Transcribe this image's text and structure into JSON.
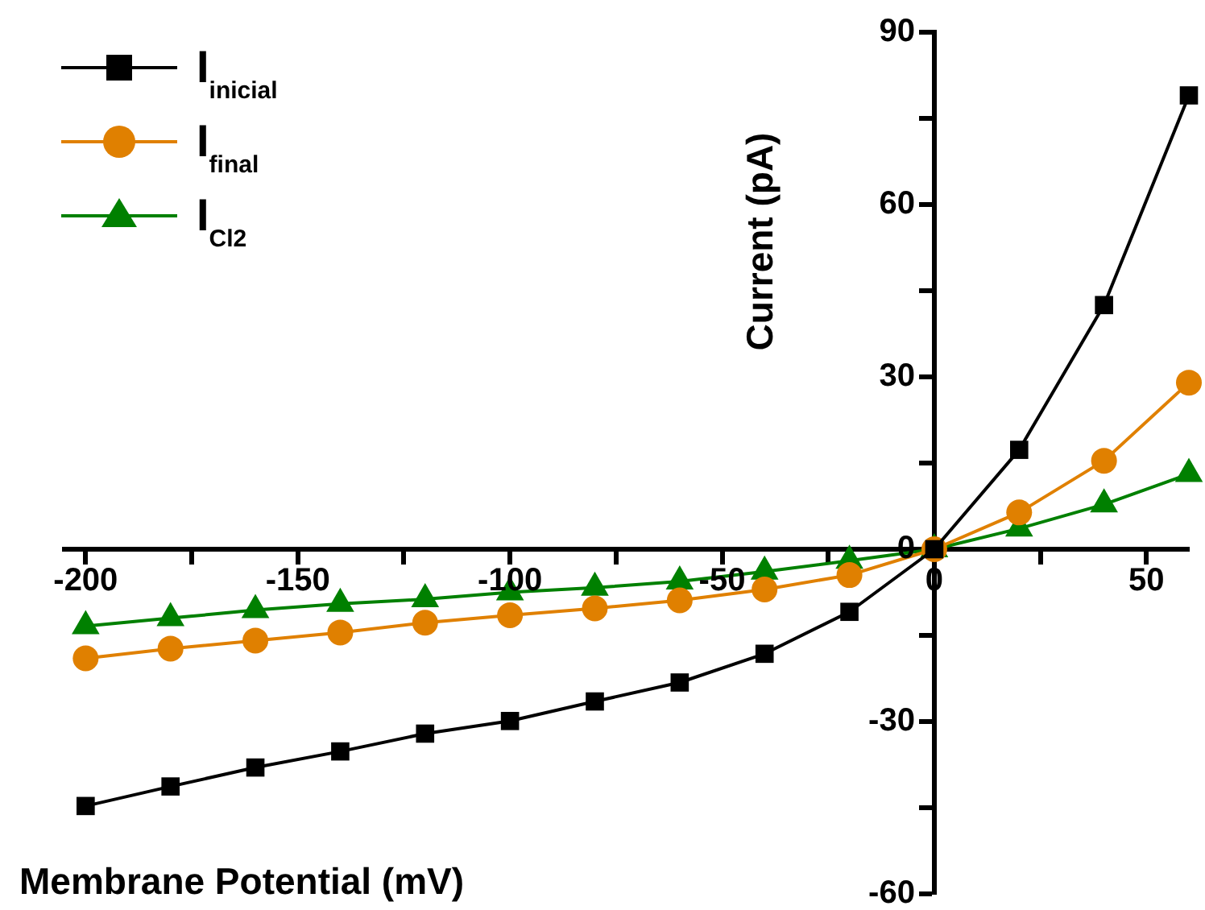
{
  "chart_data": {
    "type": "line",
    "xlabel": "Membrane Potential (mV)",
    "ylabel": "Current (pA)",
    "x": [
      -200,
      -180,
      -160,
      -140,
      -120,
      -100,
      -80,
      -60,
      -40,
      -20,
      0,
      20,
      40,
      60
    ],
    "series": [
      {
        "name": "I$_{inicial}$",
        "color": "#000000",
        "marker": "square",
        "values": [
          -44.7,
          -41.3,
          -38,
          -35.2,
          -32.1,
          -29.9,
          -26.5,
          -23.2,
          -18.2,
          -10.9,
          0,
          17.3,
          42.5,
          79
        ]
      },
      {
        "name": "I$_{final}$",
        "color": "#e08000",
        "marker": "circle",
        "values": [
          -19,
          -17.3,
          -15.9,
          -14.5,
          -12.8,
          -11.5,
          -10.3,
          -8.9,
          -7,
          -4.5,
          0,
          6.4,
          15.4,
          29
        ]
      },
      {
        "name": "I$_{Cl2}$",
        "color": "#008000",
        "marker": "triangle",
        "values": [
          -13.4,
          -12,
          -10.6,
          -9.5,
          -8.7,
          -7.5,
          -6.7,
          -5.6,
          -3.9,
          -2,
          0,
          3.6,
          7.8,
          13.1
        ]
      }
    ],
    "xlim": [
      -205,
      60
    ],
    "ylim": [
      -60,
      90
    ],
    "xticks": [
      -200,
      {
        "value": -175,
        "label": null
      },
      -150,
      {
        "value": -125,
        "label": null
      },
      -100,
      {
        "value": -75,
        "label": null
      },
      -50,
      {
        "value": -25,
        "label": null
      },
      0,
      {
        "value": 25,
        "label": null
      },
      50
    ],
    "yticks": [
      -60,
      {
        "value": -45,
        "label": null
      },
      -30,
      {
        "value": -15,
        "label": null
      },
      0,
      {
        "value": 15,
        "label": null
      },
      30,
      {
        "value": 45,
        "label": null
      },
      60,
      {
        "value": 75,
        "label": null
      },
      90
    ],
    "grid": false,
    "legend": "top left",
    "line_style": "solid"
  }
}
